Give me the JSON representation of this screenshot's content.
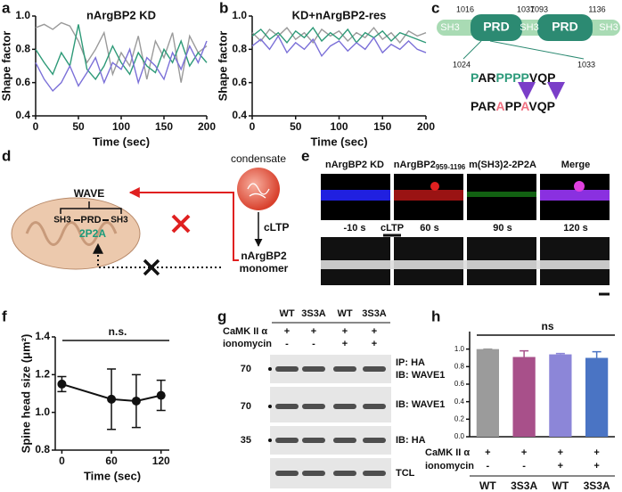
{
  "panel_labels": [
    "a",
    "b",
    "c",
    "d",
    "e",
    "f",
    "g",
    "h"
  ],
  "chart_data": [
    {
      "type": "line",
      "title": "nArgBP2 KD",
      "xlabel": "Time (sec)",
      "ylabel": "Shape factor",
      "x": [
        0,
        10,
        20,
        30,
        40,
        50,
        60,
        70,
        80,
        90,
        100,
        110,
        120,
        130,
        140,
        150,
        160,
        170,
        180,
        190,
        200
      ],
      "series": [
        {
          "color": "#9a9a9a",
          "values": [
            0.93,
            0.95,
            0.92,
            0.96,
            0.94,
            0.85,
            0.72,
            0.8,
            0.9,
            0.65,
            0.78,
            0.7,
            0.88,
            0.62,
            0.85,
            0.75,
            0.9,
            0.6,
            0.88,
            0.78,
            0.82
          ]
        },
        {
          "color": "#2e9a78",
          "values": [
            0.8,
            0.72,
            0.65,
            0.78,
            0.7,
            0.95,
            0.68,
            0.62,
            0.7,
            0.82,
            0.72,
            0.65,
            0.78,
            0.7,
            0.66,
            0.8,
            0.72,
            0.85,
            0.7,
            0.78,
            0.72
          ]
        },
        {
          "color": "#7b70d8",
          "values": [
            0.72,
            0.62,
            0.55,
            0.6,
            0.7,
            0.58,
            0.66,
            0.75,
            0.6,
            0.72,
            0.68,
            0.8,
            0.6,
            0.75,
            0.7,
            0.62,
            0.78,
            0.68,
            0.82,
            0.72,
            0.85
          ]
        }
      ],
      "xlim": [
        0,
        200
      ],
      "xticks": [
        0,
        50,
        100,
        150,
        200
      ],
      "ylim": [
        0.4,
        1.0
      ],
      "yticks": [
        0.4,
        0.6,
        0.8,
        {
          "value": 1,
          "label": "1.0"
        }
      ]
    },
    {
      "type": "line",
      "title": "KD+nArgBP2-res",
      "xlabel": "Time (sec)",
      "ylabel": "Shape factor",
      "x": [
        0,
        10,
        20,
        30,
        40,
        50,
        60,
        70,
        80,
        90,
        100,
        110,
        120,
        130,
        140,
        150,
        160,
        170,
        180,
        190,
        200
      ],
      "series": [
        {
          "color": "#9a9a9a",
          "values": [
            0.9,
            0.85,
            0.92,
            0.88,
            0.93,
            0.86,
            0.9,
            0.84,
            0.92,
            0.88,
            0.91,
            0.85,
            0.9,
            0.87,
            0.93,
            0.86,
            0.9,
            0.84,
            0.91,
            0.88,
            0.9
          ]
        },
        {
          "color": "#2e9a78",
          "values": [
            0.88,
            0.92,
            0.86,
            0.9,
            0.84,
            0.91,
            0.87,
            0.93,
            0.85,
            0.9,
            0.86,
            0.92,
            0.84,
            0.9,
            0.87,
            0.91,
            0.85,
            0.9,
            0.88,
            0.86,
            0.84
          ]
        },
        {
          "color": "#7b70d8",
          "values": [
            0.82,
            0.86,
            0.8,
            0.88,
            0.78,
            0.84,
            0.8,
            0.86,
            0.76,
            0.82,
            0.85,
            0.79,
            0.84,
            0.8,
            0.87,
            0.78,
            0.83,
            0.8,
            0.85,
            0.8,
            0.78
          ]
        }
      ],
      "xlim": [
        0,
        200
      ],
      "xticks": [
        0,
        50,
        100,
        150,
        200
      ],
      "ylim": [
        0.4,
        1.0
      ],
      "yticks": [
        0.4,
        0.6,
        0.8,
        {
          "value": 1,
          "label": "1.0"
        }
      ]
    },
    {
      "type": "errorline",
      "xlabel": "Time (sec)",
      "ylabel": "Spine head size (μm²)",
      "annotation": "n.s.",
      "x": [
        0,
        60,
        90,
        120
      ],
      "values": [
        1.15,
        1.07,
        1.06,
        1.09
      ],
      "errors": [
        0.04,
        0.16,
        0.14,
        0.08
      ],
      "color": "#111111",
      "xlim": [
        -8,
        130
      ],
      "xticks": [
        0,
        60,
        120
      ],
      "ylim": [
        0.8,
        1.4
      ],
      "yticks": [
        0.8,
        {
          "value": 1,
          "label": "1.0"
        },
        1.2,
        1.4
      ]
    },
    {
      "type": "bar",
      "annotation": "ns",
      "categories": [
        "WT",
        "3S3A",
        "WT",
        "3S3A"
      ],
      "values": [
        1.0,
        0.91,
        0.94,
        0.9
      ],
      "errors": [
        0,
        0.07,
        0.01,
        0.07
      ],
      "colors": [
        "#9b9b9b",
        "#a8508a",
        "#8c86d8",
        "#4a74c4"
      ],
      "rows": [
        {
          "label": "CaMK II α",
          "values": [
            "+",
            "+",
            "+",
            "+"
          ]
        },
        {
          "label": "ionomycin",
          "values": [
            "-",
            "-",
            "+",
            "+"
          ]
        }
      ],
      "ylim": [
        0,
        1.2
      ],
      "yticks": [
        {
          "value": 0,
          "label": "0.0"
        },
        0.2,
        0.4,
        0.6,
        0.8,
        {
          "value": 1,
          "label": "1.0"
        }
      ]
    }
  ],
  "diagram_c": {
    "domains": [
      "SH3",
      "PRD",
      "SH3",
      "PRD",
      "SH3"
    ],
    "positions": [
      "1016",
      "1037",
      "1093",
      "1136"
    ],
    "range": [
      "1024",
      "1033"
    ],
    "wild": [
      "P",
      "AR",
      "PPPP",
      "VQP"
    ],
    "mutant": [
      "PAR",
      "A",
      "PP",
      "A",
      "VQP"
    ]
  },
  "diagram_d": {
    "wave": "WAVE",
    "sh3a": "SH3",
    "prd": "PRD",
    "sh3b": "SH3",
    "mut": "2P2A",
    "condensate": "condensate",
    "trigger": "cLTP",
    "protein": "nArgBP2",
    "state": "monomer"
  },
  "panel_e": {
    "columns": [
      "nArgBP2 KD",
      {
        "text": "nArgBP2",
        "sub": "959-1196"
      },
      "m(SH3)2-2P2A",
      "Merge"
    ],
    "times": [
      "-10 s",
      "60 s",
      "90 s",
      "120 s"
    ],
    "stim": "cLTP"
  },
  "panel_g": {
    "lanes": [
      "WT",
      "3S3A",
      "WT",
      "3S3A"
    ],
    "rows": [
      {
        "label": "CaMK II α",
        "values": [
          "+",
          "+",
          "+",
          "+"
        ]
      },
      {
        "label": "ionomycin",
        "values": [
          "-",
          "-",
          "+",
          "+"
        ]
      }
    ],
    "markers": [
      "70",
      "70",
      "35"
    ],
    "blots": [
      "IP: HA",
      "IB: WAVE1",
      "IB: WAVE1",
      "IB: HA",
      "TCL"
    ]
  }
}
